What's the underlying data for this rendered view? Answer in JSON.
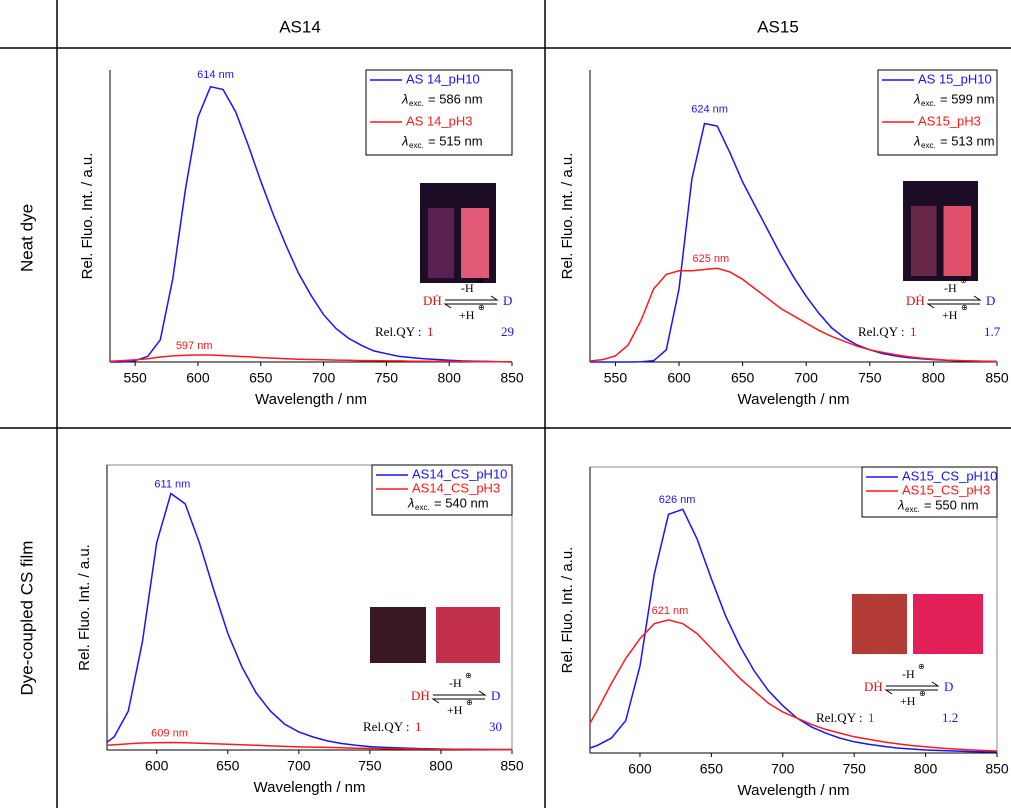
{
  "table": {
    "columns": [
      "AS14",
      "AS15"
    ],
    "rows": [
      "Neat dye",
      "Dye-coupled CS film"
    ]
  },
  "chart_data": [
    {
      "type": "line",
      "xlabel": "Wavelength / nm",
      "ylabel": "Rel. Fluo. Int. / a.u.",
      "x": [
        530,
        540,
        550,
        560,
        570,
        580,
        590,
        600,
        610,
        620,
        630,
        640,
        650,
        660,
        670,
        680,
        690,
        700,
        710,
        720,
        730,
        740,
        750,
        760,
        770,
        780,
        790,
        800,
        810,
        820,
        830,
        840,
        850
      ],
      "xlim": [
        530,
        850
      ],
      "xticks": [
        550,
        600,
        650,
        700,
        750,
        800,
        850
      ],
      "ylim": [
        0,
        1.05
      ],
      "lambda": "λ",
      "lambda_subscript": "exc.",
      "series": [
        {
          "name": "AS 14_pH10",
          "color": "#1515ff",
          "excitation": "= 586 nm",
          "values": [
            0,
            0,
            0.005,
            0.02,
            0.08,
            0.3,
            0.62,
            0.88,
            0.99,
            0.98,
            0.9,
            0.78,
            0.65,
            0.53,
            0.42,
            0.32,
            0.24,
            0.17,
            0.12,
            0.085,
            0.06,
            0.04,
            0.03,
            0.02,
            0.016,
            0.012,
            0.009,
            0.006,
            0.004,
            0.003,
            0.002,
            0.001,
            0
          ]
        },
        {
          "name": "AS 14_pH3",
          "color": "#ff1a1a",
          "excitation": "= 515 nm",
          "values": [
            0.003,
            0.005,
            0.008,
            0.012,
            0.018,
            0.022,
            0.024,
            0.025,
            0.025,
            0.023,
            0.021,
            0.019,
            0.016,
            0.014,
            0.012,
            0.01,
            0.009,
            0.008,
            0.007,
            0.006,
            0.005,
            0.005,
            0.004,
            0.004,
            0.003,
            0.003,
            0.002,
            0.002,
            0.002,
            0.001,
            0.001,
            0.001,
            0.001
          ]
        }
      ],
      "annotations": [
        {
          "text": "614 nm",
          "x": 614,
          "y": 1.0,
          "color": "#1515ff"
        },
        {
          "text": "597 nm",
          "x": 597,
          "y": 0.025,
          "color": "#ff1a1a"
        }
      ],
      "scheme": {
        "acid": "DḢ",
        "base": "D",
        "forward": "-H",
        "backward": "+H",
        "charge": "⊕",
        "qy_label": "Rel.QY :",
        "acid_qy": 1,
        "base_qy": 29
      }
    },
    {
      "type": "line",
      "xlabel": "Wavelength / nm",
      "ylabel": "Rel. Fluo. Int. / a.u.",
      "x": [
        530,
        540,
        550,
        560,
        570,
        580,
        590,
        600,
        610,
        620,
        630,
        640,
        650,
        660,
        670,
        680,
        690,
        700,
        710,
        720,
        730,
        740,
        750,
        760,
        770,
        780,
        790,
        800,
        810,
        820,
        830,
        840,
        850
      ],
      "xlim": [
        530,
        850
      ],
      "xticks": [
        550,
        600,
        650,
        700,
        750,
        800,
        850
      ],
      "ylim": [
        0,
        1.2
      ],
      "lambda": "λ",
      "lambda_subscript": "exc.",
      "series": [
        {
          "name": "AS 15_pH10",
          "color": "#1515ff",
          "excitation": "= 599 nm",
          "values": [
            0,
            0,
            0,
            0,
            0.001,
            0.005,
            0.05,
            0.3,
            0.75,
            0.98,
            0.97,
            0.86,
            0.74,
            0.64,
            0.54,
            0.44,
            0.35,
            0.27,
            0.2,
            0.14,
            0.1,
            0.07,
            0.05,
            0.035,
            0.025,
            0.018,
            0.013,
            0.01,
            0.007,
            0.005,
            0.004,
            0.003,
            0.002
          ]
        },
        {
          "name": "AS15_pH3",
          "color": "#ff1a1a",
          "excitation": "= 513 nm",
          "values": [
            0.004,
            0.01,
            0.025,
            0.07,
            0.17,
            0.3,
            0.36,
            0.375,
            0.375,
            0.38,
            0.385,
            0.37,
            0.34,
            0.3,
            0.26,
            0.22,
            0.19,
            0.16,
            0.13,
            0.105,
            0.085,
            0.065,
            0.05,
            0.04,
            0.03,
            0.022,
            0.016,
            0.012,
            0.008,
            0.006,
            0.004,
            0.003,
            0.002
          ]
        }
      ],
      "annotations": [
        {
          "text": "624 nm",
          "x": 624,
          "y": 1.0,
          "color": "#1515ff"
        },
        {
          "text": "625 nm",
          "x": 625,
          "y": 0.385,
          "color": "#ff1a1a"
        }
      ],
      "scheme": {
        "acid": "DḢ",
        "base": "D",
        "forward": "-H",
        "backward": "+H",
        "charge": "⊕",
        "qy_label": "Rel.QY :",
        "acid_qy": 1,
        "base_qy": 1.7
      }
    },
    {
      "type": "line",
      "xlabel": "Wavelength / nm",
      "ylabel": "Rel. Fluo. Int. / a.u.",
      "x": [
        565,
        570,
        580,
        590,
        600,
        610,
        620,
        630,
        640,
        650,
        660,
        670,
        680,
        690,
        700,
        710,
        720,
        730,
        740,
        750,
        760,
        770,
        780,
        790,
        800,
        810,
        820,
        830,
        840,
        850
      ],
      "xlim": [
        565,
        850
      ],
      "xticks": [
        600,
        650,
        700,
        750,
        800,
        850
      ],
      "ylim": [
        0,
        1.1
      ],
      "lambda": "λ",
      "lambda_subscript": "exc.",
      "excitation": "= 540 nm",
      "series": [
        {
          "name": "AS14_CS_pH10",
          "color": "#1515ff",
          "values": [
            0.03,
            0.05,
            0.15,
            0.42,
            0.8,
            0.99,
            0.95,
            0.8,
            0.62,
            0.45,
            0.32,
            0.22,
            0.15,
            0.1,
            0.07,
            0.05,
            0.035,
            0.025,
            0.018,
            0.013,
            0.01,
            0.008,
            0.006,
            0.005,
            0.004,
            0.003,
            0.003,
            0.002,
            0.002,
            0.002
          ]
        },
        {
          "name": "AS14_CS_pH3",
          "color": "#ff1a1a",
          "values": [
            0.018,
            0.02,
            0.024,
            0.027,
            0.028,
            0.029,
            0.028,
            0.026,
            0.024,
            0.022,
            0.02,
            0.018,
            0.016,
            0.014,
            0.012,
            0.011,
            0.01,
            0.009,
            0.007,
            0.006,
            0.005,
            0.005,
            0.004,
            0.004,
            0.003,
            0.003,
            0.002,
            0.002,
            0.001,
            0.001
          ]
        }
      ],
      "annotations": [
        {
          "text": "611 nm",
          "x": 611,
          "y": 0.99,
          "color": "#1515ff"
        },
        {
          "text": "609 nm",
          "x": 609,
          "y": 0.029,
          "color": "#ff1a1a"
        }
      ],
      "scheme": {
        "acid": "DḢ",
        "base": "D",
        "forward": "-H",
        "backward": "+H",
        "charge": "⊕",
        "qy_label": "Rel.QY :",
        "acid_qy": 1,
        "base_qy": 30
      }
    },
    {
      "type": "line",
      "xlabel": "Wavelength / nm",
      "ylabel": "Rel. Fluo. Int. / a.u.",
      "x": [
        565,
        570,
        580,
        590,
        600,
        610,
        620,
        630,
        640,
        650,
        660,
        670,
        680,
        690,
        700,
        710,
        720,
        730,
        740,
        750,
        760,
        770,
        780,
        790,
        800,
        810,
        820,
        830,
        840,
        850
      ],
      "xlim": [
        565,
        850
      ],
      "xticks": [
        600,
        650,
        700,
        750,
        800,
        850
      ],
      "ylim": [
        0,
        1.15
      ],
      "lambda": "λ",
      "lambda_subscript": "exc.",
      "excitation": "= 550 nm",
      "series": [
        {
          "name": "AS15_CS_pH10",
          "color": "#1515ff",
          "values": [
            0.02,
            0.03,
            0.06,
            0.13,
            0.35,
            0.72,
            0.96,
            0.98,
            0.86,
            0.7,
            0.55,
            0.43,
            0.33,
            0.25,
            0.19,
            0.14,
            0.105,
            0.08,
            0.06,
            0.045,
            0.035,
            0.027,
            0.02,
            0.016,
            0.012,
            0.01,
            0.008,
            0.006,
            0.005,
            0.004
          ]
        },
        {
          "name": "AS15_CS_pH3",
          "color": "#ff1a1a",
          "values": [
            0.12,
            0.17,
            0.28,
            0.38,
            0.46,
            0.52,
            0.535,
            0.52,
            0.48,
            0.42,
            0.36,
            0.3,
            0.25,
            0.2,
            0.165,
            0.14,
            0.115,
            0.095,
            0.08,
            0.065,
            0.055,
            0.045,
            0.037,
            0.03,
            0.025,
            0.02,
            0.016,
            0.013,
            0.01,
            0.008
          ]
        }
      ],
      "annotations": [
        {
          "text": "626 nm",
          "x": 626,
          "y": 0.98,
          "color": "#1515ff"
        },
        {
          "text": "621 nm",
          "x": 621,
          "y": 0.535,
          "color": "#ff1a1a"
        }
      ],
      "scheme": {
        "acid": "DḢ",
        "base": "D",
        "forward": "-H",
        "backward": "+H",
        "charge": "⊕",
        "qy_label": "Rel.QY :",
        "acid_qy": 1,
        "base_qy": 1.2
      }
    }
  ]
}
